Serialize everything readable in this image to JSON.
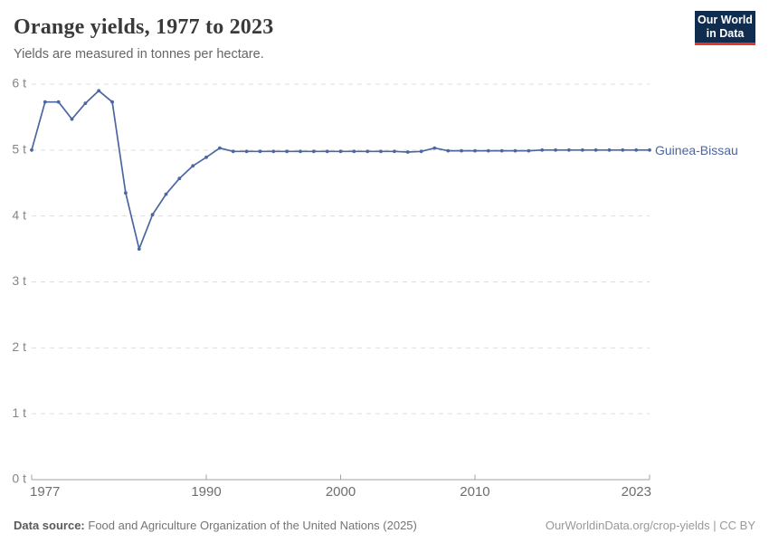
{
  "header": {
    "title": "Orange yields, 1977 to 2023",
    "subtitle": "Yields are measured in tonnes per hectare.",
    "logo": {
      "line1": "Our World",
      "line2": "in Data"
    }
  },
  "chart_data": {
    "type": "line",
    "title": "Orange yields, 1977 to 2023",
    "subtitle": "Yields are measured in tonnes per hectare.",
    "unit": "tonnes per hectare",
    "x": [
      1977,
      1978,
      1979,
      1980,
      1981,
      1982,
      1983,
      1984,
      1985,
      1986,
      1987,
      1988,
      1989,
      1990,
      1991,
      1992,
      1993,
      1994,
      1995,
      1996,
      1997,
      1998,
      1999,
      2000,
      2001,
      2002,
      2003,
      2004,
      2005,
      2006,
      2007,
      2008,
      2009,
      2010,
      2011,
      2012,
      2013,
      2014,
      2015,
      2016,
      2017,
      2018,
      2019,
      2020,
      2021,
      2022,
      2023
    ],
    "series": [
      {
        "name": "Guinea-Bissau",
        "color": "#4c669f",
        "values": [
          5.0,
          5.73,
          5.73,
          5.47,
          5.71,
          5.9,
          5.73,
          4.35,
          3.5,
          4.02,
          4.33,
          4.57,
          4.76,
          4.89,
          5.03,
          4.98,
          4.98,
          4.98,
          4.98,
          4.98,
          4.98,
          4.98,
          4.98,
          4.98,
          4.98,
          4.98,
          4.98,
          4.98,
          4.97,
          4.98,
          5.03,
          4.99,
          4.99,
          4.99,
          4.99,
          4.99,
          4.99,
          4.99,
          5.0,
          5.0,
          5.0,
          5.0,
          5.0,
          5.0,
          5.0,
          5.0,
          5.0
        ]
      }
    ],
    "xlabel": "",
    "ylabel": "",
    "ylim": [
      0,
      6
    ],
    "xlim": [
      1977,
      2023
    ],
    "y_ticks": [
      {
        "value": 0,
        "label": "0 t"
      },
      {
        "value": 1,
        "label": "1 t"
      },
      {
        "value": 2,
        "label": "2 t"
      },
      {
        "value": 3,
        "label": "3 t"
      },
      {
        "value": 4,
        "label": "4 t"
      },
      {
        "value": 5,
        "label": "5 t"
      },
      {
        "value": 6,
        "label": "6 t"
      }
    ],
    "x_ticks": [
      1977,
      1990,
      2000,
      2010,
      2023
    ],
    "grid": "horizontal-dashed",
    "legend_position": "end-of-line",
    "markers": true
  },
  "footer": {
    "source_label": "Data source:",
    "source_value": "Food and Agriculture Organization of the United Nations (2025)",
    "link": "OurWorldinData.org/crop-yields | CC BY"
  },
  "colors": {
    "line": "#4c669f",
    "grid": "#dddddd",
    "axis": "#a3a3a3",
    "x_tick_label": "#6e6e6e",
    "y_tick_label": "#858585",
    "title": "#3a3a3a",
    "subtitle": "#666666",
    "footer_text": "#757575",
    "footer_link": "#999999",
    "logo_bg": "#102d4f",
    "logo_accent": "#e0362f"
  }
}
